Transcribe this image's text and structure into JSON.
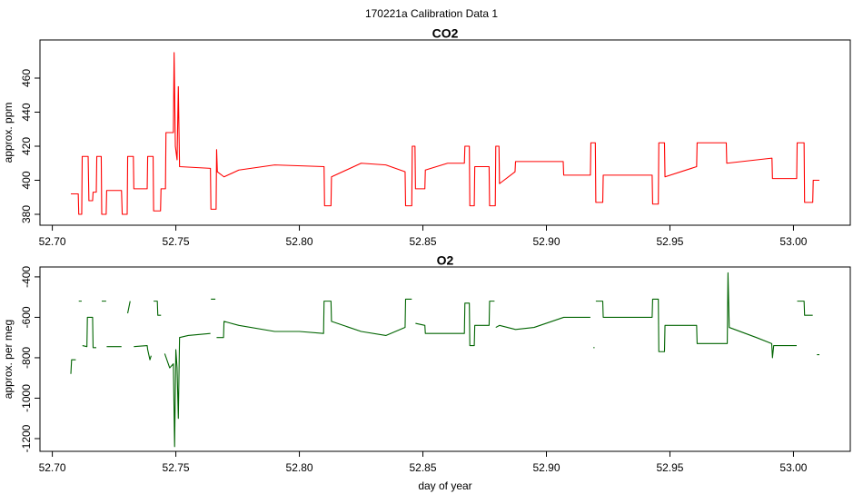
{
  "title": "170221a   Calibration Data 1",
  "chart_data": [
    {
      "type": "line",
      "title": "CO2",
      "ylabel": "approx. ppm",
      "color": "#ff0000",
      "xlim": [
        52.695,
        53.023
      ],
      "ylim": [
        373.6,
        482.4
      ],
      "xticks": [
        {
          "value": 52.7,
          "label": "52.70"
        },
        52.75,
        {
          "value": 52.8,
          "label": "52.80"
        },
        52.85,
        {
          "value": 52.9,
          "label": "52.90"
        },
        52.95,
        {
          "value": 53.0,
          "label": "53.00"
        }
      ],
      "yticks": [
        380,
        400,
        420,
        440,
        460
      ],
      "x": [
        52.7075,
        52.7105,
        52.7107,
        52.7119,
        52.7121,
        52.7145,
        52.7148,
        52.7163,
        52.7165,
        52.7178,
        52.718,
        52.7198,
        52.72,
        52.7218,
        52.722,
        52.728,
        52.7283,
        52.7303,
        52.7305,
        52.7328,
        52.733,
        52.7384,
        52.7386,
        52.7408,
        52.741,
        52.7438,
        52.744,
        52.7458,
        52.746,
        52.749,
        52.7493,
        52.7498,
        52.7505,
        52.751,
        52.7515,
        52.764,
        52.7642,
        52.7663,
        52.7665,
        52.7668,
        52.7695,
        52.7755,
        52.79,
        52.81,
        52.8102,
        52.8128,
        52.813,
        52.825,
        52.835,
        52.8428,
        52.843,
        52.8455,
        52.8457,
        52.8468,
        52.847,
        52.8508,
        52.851,
        52.86,
        52.8668,
        52.867,
        52.8688,
        52.869,
        52.8708,
        52.871,
        52.8768,
        52.877,
        52.8793,
        52.8795,
        52.8808,
        52.881,
        52.8873,
        52.8875,
        52.9068,
        52.907,
        52.9178,
        52.918,
        52.9198,
        52.92,
        52.9228,
        52.923,
        52.9428,
        52.943,
        52.9453,
        52.9455,
        52.9478,
        52.948,
        52.9608,
        52.961,
        52.9728,
        52.973,
        52.9913,
        52.9915,
        53.0013,
        53.0015,
        53.0043,
        53.0045,
        53.0078,
        53.008,
        53.0105
      ],
      "values": [
        392,
        392,
        380,
        380,
        414,
        414,
        388,
        388,
        393,
        393,
        414,
        414,
        380,
        380,
        394,
        394,
        380,
        380,
        414,
        414,
        395,
        395,
        414,
        414,
        382,
        382,
        395,
        395,
        428,
        428,
        475,
        420,
        412,
        455,
        408,
        407,
        383,
        383,
        418,
        405,
        402,
        406,
        409,
        408,
        385,
        385,
        402,
        410,
        409,
        405,
        385,
        385,
        420,
        420,
        395,
        395,
        406,
        410,
        410,
        420,
        420,
        385,
        385,
        408,
        408,
        385,
        385,
        420,
        420,
        398,
        405,
        411,
        411,
        403,
        403,
        422,
        422,
        387,
        387,
        403,
        403,
        386,
        386,
        422,
        422,
        402,
        408,
        422,
        422,
        410,
        413,
        401,
        401,
        422,
        422,
        387,
        387,
        400,
        400
      ]
    },
    {
      "type": "line",
      "title": "O2",
      "ylabel": "approx. per meg",
      "xlabel": "day of year",
      "color": "#006400",
      "xlim": [
        52.695,
        53.023
      ],
      "ylim": [
        -1263,
        -351
      ],
      "xticks": [
        {
          "value": 52.7,
          "label": "52.70"
        },
        52.75,
        {
          "value": 52.8,
          "label": "52.80"
        },
        52.85,
        {
          "value": 52.9,
          "label": "52.90"
        },
        52.95,
        {
          "value": 53.0,
          "label": "53.00"
        }
      ],
      "yticks": [
        -1200,
        -1000,
        -800,
        -600,
        -400
      ],
      "x": [
        52.7075,
        52.7078,
        52.7095,
        52.71,
        52.7107,
        52.7119,
        52.712,
        52.7122,
        52.714,
        52.7142,
        52.7163,
        52.7165,
        52.7178,
        52.719,
        52.72,
        52.7218,
        52.7219,
        52.722,
        52.728,
        52.729,
        52.7305,
        52.7315,
        52.732,
        52.733,
        52.7384,
        52.7386,
        52.7395,
        52.74,
        52.7405,
        52.741,
        52.7425,
        52.7427,
        52.744,
        52.7445,
        52.7455,
        52.7475,
        52.749,
        52.7495,
        52.75,
        52.7505,
        52.751,
        52.7515,
        52.755,
        52.764,
        52.7641,
        52.7642,
        52.766,
        52.7662,
        52.7665,
        52.7693,
        52.7695,
        52.7755,
        52.79,
        52.8,
        52.8098,
        52.81,
        52.8128,
        52.813,
        52.825,
        52.835,
        52.8428,
        52.843,
        52.8455,
        52.8456,
        52.847,
        52.8508,
        52.851,
        52.8668,
        52.867,
        52.8688,
        52.869,
        52.8708,
        52.871,
        52.8768,
        52.877,
        52.879,
        52.8792,
        52.8795,
        52.881,
        52.8875,
        52.895,
        52.907,
        52.9178,
        52.918,
        52.919,
        52.9195,
        52.9197,
        52.92,
        52.9228,
        52.923,
        52.9428,
        52.943,
        52.9453,
        52.9455,
        52.9478,
        52.948,
        52.9608,
        52.961,
        52.9732,
        52.9735,
        52.974,
        52.985,
        52.9912,
        52.9915,
        52.992,
        53.0013,
        53.0014,
        53.0015,
        53.0043,
        53.0045,
        53.0078,
        53.009,
        53.0095,
        53.0105
      ],
      "values": [
        -880,
        -810,
        -810,
        null,
        -520,
        -520,
        null,
        -740,
        -745,
        -600,
        -600,
        -750,
        -750,
        null,
        -520,
        -520,
        null,
        -745,
        -745,
        null,
        -580,
        -520,
        null,
        -745,
        -740,
        -760,
        -810,
        -790,
        null,
        -520,
        -520,
        -590,
        -590,
        null,
        -780,
        -850,
        -830,
        -1240,
        -760,
        -850,
        -1100,
        -700,
        -690,
        -680,
        null,
        -510,
        -510,
        null,
        -700,
        -700,
        -620,
        -640,
        -670,
        -670,
        -680,
        -520,
        -520,
        -620,
        -670,
        -690,
        -650,
        -510,
        -510,
        null,
        -630,
        -640,
        -680,
        -680,
        -530,
        -530,
        -740,
        -740,
        -640,
        -640,
        -520,
        -520,
        null,
        -650,
        -640,
        -660,
        -650,
        -600,
        -600,
        null,
        -750,
        -750,
        null,
        -520,
        -520,
        -600,
        -600,
        -510,
        -510,
        -770,
        -770,
        -640,
        -640,
        -730,
        -730,
        -380,
        -650,
        -700,
        -730,
        -800,
        -740,
        -740,
        null,
        -520,
        -520,
        -590,
        -590,
        null,
        -785,
        -785
      ]
    }
  ]
}
